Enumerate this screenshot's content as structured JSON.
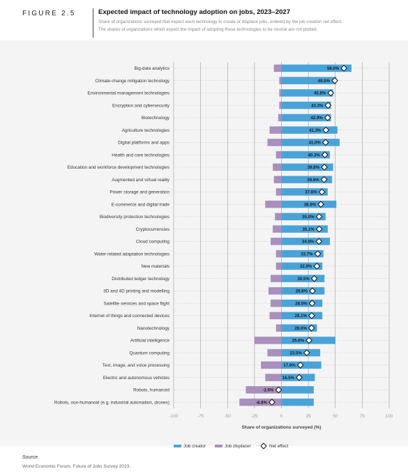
{
  "header": {
    "figure_label": "FIGURE 2.5",
    "title": "Expected impact of technology adoption on jobs, 2023–2027",
    "subtitle_line1": "Share of organizations surveyed that expect each technology to create or displace jobs, ordered by the job creation net effect.",
    "subtitle_line2": "The shares of organizations which expect the impact of adopting these technologies to be neutral are not plotted."
  },
  "source": {
    "heading": "Source",
    "text": "World Economic Forum, Future of Jobs Survey 2023."
  },
  "colors": {
    "creator": "#4aa3d8",
    "displacer": "#a98fbd",
    "net_marker_fill": "#ffffff",
    "net_marker_stroke": "#111111"
  },
  "chart_data": {
    "type": "bar",
    "orientation": "horizontal",
    "xlabel": "Share of organizations surveyed (%)",
    "xlim": [
      -100,
      100
    ],
    "xticks": [
      -100,
      -75,
      -50,
      -25,
      0,
      25,
      50,
      75,
      100
    ],
    "grid": true,
    "legend_placement": "bottom-center",
    "legend": [
      "Job creator",
      "Job displacer",
      "Net effect"
    ],
    "categories": [
      "Big-data analytics",
      "Climate-change mitigation technology",
      "Environmental management technologies",
      "Encryption and cybersecurity",
      "Biotechnology",
      "Agriculture technologies",
      "Digital platforms and apps",
      "Health and care technologies",
      "Education and workforce development technologies",
      "Augmented and virtual reality",
      "Power storage and generation",
      "E-commerce and digital trade",
      "Biodiversity protection technologies",
      "Cryptocurrencies",
      "Cloud computing",
      "Water-related adaptation technologies",
      "New materials",
      "Distributed ledger technology",
      "3D and 4D printing and modelling",
      "Satellite services and space flight",
      "Internet of things and connected devices",
      "Nanotechnology",
      "Artificial intelligence",
      "Quantum computing",
      "Text, image, and voice processing",
      "Electric and autonomous vehicles",
      "Robots, humanoid",
      "Robots, non-humanoid (e.g. industrial automation, drones)"
    ],
    "series": [
      {
        "name": "Job creator",
        "values": [
          65,
          51,
          48,
          46,
          46,
          52,
          54,
          45,
          48,
          47,
          43,
          51,
          41,
          43,
          45,
          39,
          38,
          40,
          40,
          38,
          38,
          33,
          50,
          36,
          37,
          31,
          30,
          30
        ]
      },
      {
        "name": "Job displacer",
        "values": [
          -7,
          -2,
          -2,
          -2,
          -3,
          -11,
          -13,
          -5,
          -8,
          -7,
          -5,
          -15,
          -6,
          -8,
          -10,
          -5,
          -5,
          -10,
          -12,
          -10,
          -11,
          -5,
          -25,
          -13,
          -19,
          -15,
          -33,
          -39
        ]
      },
      {
        "name": "Net effect",
        "values": [
          58.0,
          49.5,
          45.8,
          43.3,
          42.9,
          41.3,
          41.0,
          40.3,
          39.8,
          39.6,
          37.6,
          36.6,
          35.0,
          35.1,
          34.8,
          33.7,
          32.9,
          30.5,
          28.8,
          28.5,
          28.1,
          28.0,
          25.6,
          23.5,
          17.6,
          16.5,
          -2.6,
          -8.8
        ]
      }
    ],
    "net_labels": [
      "58.0%",
      "49.5%",
      "45.8%",
      "43.3%",
      "42.9%",
      "41.3%",
      "41.0%",
      "40.3%",
      "39.8%",
      "39.6%",
      "37.6%",
      "36.6%",
      "35.0%",
      "35.1%",
      "34.8%",
      "33.7%",
      "32.9%",
      "30.5%",
      "28.8%",
      "28.5%",
      "28.1%",
      "28.0%",
      "25.6%",
      "23.5%",
      "17.6%",
      "16.5%",
      "-2.6%",
      "-8.8%"
    ]
  }
}
